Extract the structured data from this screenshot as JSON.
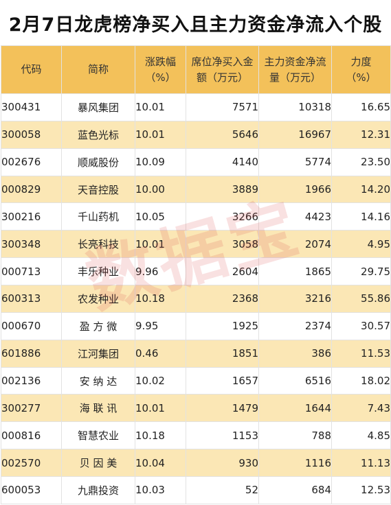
{
  "title": "2月7日龙虎榜净买入且主力资金净流入个股",
  "watermark": "数据宝",
  "headers": {
    "code": [
      "代码"
    ],
    "name": [
      "简称"
    ],
    "change": [
      "涨跌幅",
      "（%）"
    ],
    "seat_net": [
      "席位净买入金",
      "额（万元）"
    ],
    "main_flow": [
      "主力资金净流",
      "量（万元）"
    ],
    "strength": [
      "力度",
      "（%）"
    ]
  },
  "rows": [
    {
      "code": "300431",
      "name": "暴风集团",
      "change": "10.01",
      "seat_net": "7571",
      "main_flow": "10318",
      "strength": "16.65"
    },
    {
      "code": "300058",
      "name": "蓝色光标",
      "change": "10.01",
      "seat_net": "5646",
      "main_flow": "16967",
      "strength": "12.31"
    },
    {
      "code": "002676",
      "name": "顺威股份",
      "change": "10.09",
      "seat_net": "4140",
      "main_flow": "5774",
      "strength": "23.50"
    },
    {
      "code": "000829",
      "name": "天音控股",
      "change": "10.00",
      "seat_net": "3889",
      "main_flow": "1966",
      "strength": "14.20"
    },
    {
      "code": "300216",
      "name": "千山药机",
      "change": "10.05",
      "seat_net": "3266",
      "main_flow": "4423",
      "strength": "14.16"
    },
    {
      "code": "300348",
      "name": "长亮科技",
      "change": "10.01",
      "seat_net": "3058",
      "main_flow": "2074",
      "strength": "4.95"
    },
    {
      "code": "000713",
      "name": "丰乐种业",
      "change": "9.96",
      "seat_net": "2604",
      "main_flow": "1865",
      "strength": "29.75"
    },
    {
      "code": "600313",
      "name": "农发种业",
      "change": "10.18",
      "seat_net": "2368",
      "main_flow": "3216",
      "strength": "55.86"
    },
    {
      "code": "000670",
      "name": "盈 方 微",
      "change": "9.95",
      "seat_net": "1925",
      "main_flow": "2374",
      "strength": "30.57"
    },
    {
      "code": "601886",
      "name": "江河集团",
      "change": "0.46",
      "seat_net": "1851",
      "main_flow": "386",
      "strength": "11.53"
    },
    {
      "code": "002136",
      "name": "安 纳 达",
      "change": "10.02",
      "seat_net": "1657",
      "main_flow": "6516",
      "strength": "18.02"
    },
    {
      "code": "300277",
      "name": "海 联 讯",
      "change": "10.01",
      "seat_net": "1479",
      "main_flow": "1644",
      "strength": "7.43"
    },
    {
      "code": "000816",
      "name": "智慧农业",
      "change": "10.18",
      "seat_net": "1153",
      "main_flow": "788",
      "strength": "4.85"
    },
    {
      "code": "002570",
      "name": "贝 因 美",
      "change": "10.04",
      "seat_net": "930",
      "main_flow": "1116",
      "strength": "11.13"
    },
    {
      "code": "600053",
      "name": "九鼎投资",
      "change": "10.03",
      "seat_net": "52",
      "main_flow": "684",
      "strength": "12.53"
    }
  ]
}
